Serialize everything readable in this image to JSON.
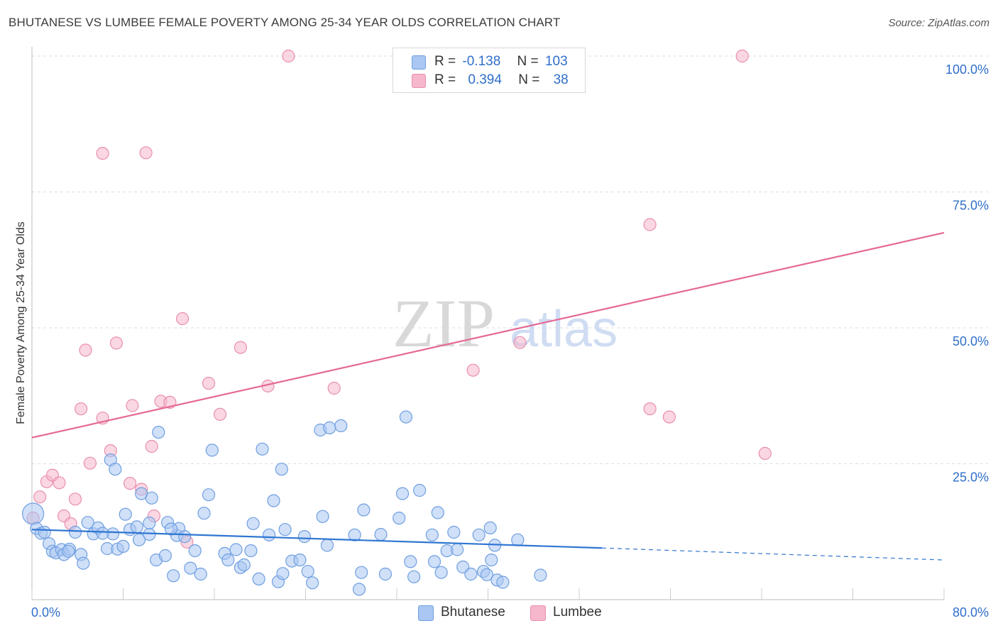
{
  "title": "BHUTANESE VS LUMBEE FEMALE POVERTY AMONG 25-34 YEAR OLDS CORRELATION CHART",
  "source": "Source: ZipAtlas.com",
  "watermark": {
    "zip": "ZIP",
    "atlas": "atlas"
  },
  "legend_top": {
    "rows": [
      {
        "r_label": "R =",
        "r_value": "-0.138",
        "n_label": "N =",
        "n_value": "103",
        "color": "#a9c7f2"
      },
      {
        "r_label": "R =",
        "r_value": "0.394",
        "n_label": "N =",
        "n_value": "38",
        "color": "#f6b6cb"
      }
    ]
  },
  "colors": {
    "bhutanese_fill": "#a9c7f2",
    "bhutanese_stroke": "#6f9fe0",
    "bhutanese_line": "#2f76d2",
    "lumbee_fill": "#f6b6cb",
    "lumbee_stroke": "#e98fb0",
    "lumbee_line": "#e56895",
    "axis_label": "#2f6fc9",
    "grid": "#dddddd"
  },
  "chart_data": {
    "type": "scatter",
    "title": "BHUTANESE VS LUMBEE FEMALE POVERTY AMONG 25-34 YEAR OLDS CORRELATION CHART",
    "xlabel": "",
    "ylabel": "Female Poverty Among 25-34 Year Olds",
    "xlim": [
      0,
      80
    ],
    "ylim": [
      0,
      100
    ],
    "x_tick_labels": [
      {
        "value": 0,
        "label": "0.0%"
      },
      {
        "value": 80,
        "label": "80.0%"
      }
    ],
    "y_tick_labels": [
      {
        "value": 25,
        "label": "25.0%"
      },
      {
        "value": 50,
        "label": "50.0%"
      },
      {
        "value": 75,
        "label": "75.0%"
      },
      {
        "value": 100,
        "label": "100.0%"
      }
    ],
    "grid": true,
    "legend_placement": "bottom-center",
    "series": [
      {
        "name": "Bhutanese",
        "r": -0.138,
        "n": 103,
        "trend": {
          "x0": 0,
          "y0": 12.9,
          "x1": 50,
          "y1": 9.5,
          "dashed_to_x": 80,
          "dashed_to_y": 7.3
        },
        "points": [
          [
            0.1,
            15.8
          ],
          [
            0.4,
            13.1
          ],
          [
            0.8,
            12.2
          ],
          [
            1.1,
            12.4
          ],
          [
            1.5,
            10.3
          ],
          [
            1.8,
            8.9
          ],
          [
            2.1,
            8.6
          ],
          [
            2.6,
            9.2
          ],
          [
            2.8,
            8.3
          ],
          [
            3.3,
            9.3
          ],
          [
            3.8,
            12.4
          ],
          [
            4.3,
            8.3
          ],
          [
            4.5,
            6.7
          ],
          [
            4.9,
            14.2
          ],
          [
            5.4,
            12.1
          ],
          [
            5.8,
            13.2
          ],
          [
            6.6,
            9.4
          ],
          [
            6.9,
            25.7
          ],
          [
            7.3,
            24.0
          ],
          [
            7.1,
            12.1
          ],
          [
            7.5,
            9.3
          ],
          [
            8.0,
            9.8
          ],
          [
            8.2,
            15.7
          ],
          [
            8.6,
            12.9
          ],
          [
            9.2,
            13.4
          ],
          [
            9.4,
            11.0
          ],
          [
            9.6,
            19.5
          ],
          [
            10.3,
            12.0
          ],
          [
            10.5,
            18.7
          ],
          [
            10.3,
            14.1
          ],
          [
            10.9,
            7.3
          ],
          [
            11.1,
            30.8
          ],
          [
            11.7,
            8.1
          ],
          [
            11.9,
            14.2
          ],
          [
            12.4,
            4.4
          ],
          [
            12.7,
            11.8
          ],
          [
            12.9,
            13.1
          ],
          [
            13.4,
            11.6
          ],
          [
            13.9,
            5.8
          ],
          [
            14.3,
            9.0
          ],
          [
            14.8,
            4.7
          ],
          [
            15.1,
            15.9
          ],
          [
            15.5,
            19.3
          ],
          [
            15.8,
            27.5
          ],
          [
            16.9,
            8.5
          ],
          [
            17.2,
            7.3
          ],
          [
            17.9,
            9.2
          ],
          [
            18.3,
            5.9
          ],
          [
            18.6,
            6.4
          ],
          [
            19.2,
            9.0
          ],
          [
            19.4,
            14.0
          ],
          [
            19.9,
            3.8
          ],
          [
            20.2,
            27.7
          ],
          [
            20.8,
            11.9
          ],
          [
            21.2,
            18.2
          ],
          [
            21.6,
            3.3
          ],
          [
            22.0,
            4.8
          ],
          [
            21.9,
            24.0
          ],
          [
            22.2,
            12.9
          ],
          [
            22.8,
            7.1
          ],
          [
            23.5,
            7.3
          ],
          [
            23.9,
            11.6
          ],
          [
            24.2,
            5.2
          ],
          [
            24.6,
            3.1
          ],
          [
            25.3,
            31.2
          ],
          [
            25.5,
            15.3
          ],
          [
            25.9,
            10.0
          ],
          [
            26.1,
            31.6
          ],
          [
            27.1,
            32.0
          ],
          [
            28.3,
            11.9
          ],
          [
            28.7,
            1.9
          ],
          [
            28.9,
            5.0
          ],
          [
            29.1,
            16.5
          ],
          [
            30.6,
            12.0
          ],
          [
            31.0,
            4.7
          ],
          [
            32.2,
            15.0
          ],
          [
            32.5,
            19.5
          ],
          [
            32.8,
            33.6
          ],
          [
            33.2,
            7.0
          ],
          [
            33.5,
            4.2
          ],
          [
            34.0,
            20.1
          ],
          [
            35.1,
            11.9
          ],
          [
            35.3,
            7.0
          ],
          [
            35.6,
            16.0
          ],
          [
            35.9,
            5.0
          ],
          [
            36.4,
            9.0
          ],
          [
            37.0,
            12.4
          ],
          [
            37.3,
            9.2
          ],
          [
            37.8,
            6.0
          ],
          [
            38.5,
            4.7
          ],
          [
            39.2,
            11.9
          ],
          [
            39.6,
            5.2
          ],
          [
            39.9,
            4.6
          ],
          [
            40.2,
            13.2
          ],
          [
            40.3,
            7.3
          ],
          [
            40.6,
            10.0
          ],
          [
            40.8,
            3.6
          ],
          [
            41.3,
            3.2
          ],
          [
            42.6,
            11.0
          ],
          [
            44.6,
            4.5
          ],
          [
            12.2,
            13.0
          ],
          [
            3.2,
            8.9
          ],
          [
            6.2,
            12.2
          ]
        ]
      },
      {
        "name": "Lumbee",
        "r": 0.394,
        "n": 38,
        "trend": {
          "x0": 0,
          "y0": 29.8,
          "x1": 80,
          "y1": 67.5
        },
        "points": [
          [
            0.1,
            15.0
          ],
          [
            0.7,
            18.9
          ],
          [
            1.3,
            21.7
          ],
          [
            1.8,
            22.9
          ],
          [
            2.4,
            21.5
          ],
          [
            2.8,
            15.4
          ],
          [
            3.4,
            14.0
          ],
          [
            3.8,
            18.5
          ],
          [
            4.3,
            35.1
          ],
          [
            4.7,
            45.9
          ],
          [
            5.1,
            25.1
          ],
          [
            6.2,
            33.4
          ],
          [
            6.2,
            82.1
          ],
          [
            6.9,
            27.4
          ],
          [
            7.4,
            47.2
          ],
          [
            8.6,
            21.4
          ],
          [
            8.8,
            35.7
          ],
          [
            9.6,
            20.3
          ],
          [
            10.0,
            82.2
          ],
          [
            10.5,
            28.2
          ],
          [
            10.7,
            15.4
          ],
          [
            11.3,
            36.5
          ],
          [
            12.1,
            36.3
          ],
          [
            13.2,
            51.7
          ],
          [
            13.6,
            10.6
          ],
          [
            15.5,
            39.8
          ],
          [
            16.5,
            34.1
          ],
          [
            18.3,
            46.4
          ],
          [
            20.7,
            39.3
          ],
          [
            22.5,
            100.0
          ],
          [
            26.5,
            38.9
          ],
          [
            38.7,
            42.2
          ],
          [
            42.8,
            47.3
          ],
          [
            54.2,
            35.1
          ],
          [
            54.2,
            69.0
          ],
          [
            55.9,
            33.6
          ],
          [
            62.3,
            100.0
          ],
          [
            64.3,
            26.9
          ]
        ]
      }
    ]
  },
  "legend_bottom": {
    "items": [
      {
        "label": "Bhutanese",
        "color": "#a9c7f2"
      },
      {
        "label": "Lumbee",
        "color": "#f6b6cb"
      }
    ]
  }
}
